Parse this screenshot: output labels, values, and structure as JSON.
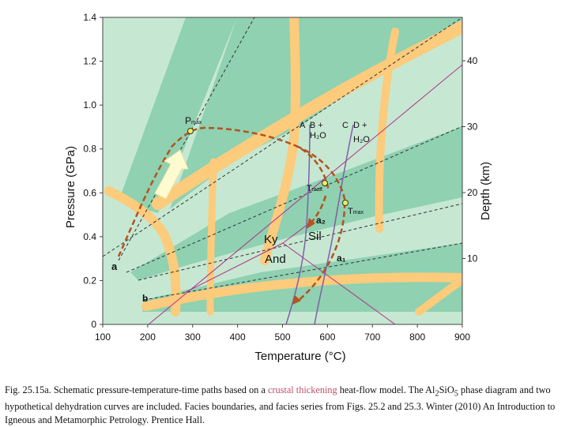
{
  "colors": {
    "field_light": "#c6e8d2",
    "field_dark": "#8fd1b1",
    "band": "#fccb7c",
    "path": "#b5521d",
    "reaction": "#7e5fa8",
    "geotherm": "#b3308a",
    "arrow": "#fffbd0",
    "highlight": "#c0506a"
  },
  "axes": {
    "x_label": "Temperature (°C)",
    "y_label": "Pressure (GPa)",
    "y2_label": "Depth (km)",
    "x_ticks": [
      "100",
      "200",
      "300",
      "400",
      "500",
      "600",
      "700",
      "800",
      "900"
    ],
    "y_ticks": [
      "0",
      "0.2",
      "0.4",
      "0.6",
      "0.8",
      "1.0",
      "1.2",
      "1.4"
    ],
    "y2_ticks": [
      "10",
      "20",
      "30",
      "40"
    ]
  },
  "labels": {
    "pmax": "P",
    "pmax_sub": "max",
    "tmax": "T",
    "tmax_sub": "max",
    "curve_a_b": "A  B +",
    "h2o_1": "H₂O",
    "curve_c_d": "C  D +",
    "h2o_2": "H₂O",
    "ky": "Ky",
    "sil": "Sil",
    "and": "And",
    "point_a": "a",
    "point_b": "b",
    "point_a1": "a₁",
    "point_a2": "a₂"
  },
  "caption": {
    "part1": "Fig. 25.15a. Schematic pressure-temperature-time paths based on a ",
    "highlight": "crustal thickening",
    "part2": " heat-flow model. The Al",
    "sub1": "2",
    "part3": "Si",
    "part4": "O",
    "sub2": "5",
    "part5": " phase diagram and two hypothetical dehydration curves are included. Facies boundaries, and facies series from Figs. 25.2 and 25.3. Winter (2010) An Introduction to Igneous and Metamorphic Petrology. Prentice Hall."
  }
}
